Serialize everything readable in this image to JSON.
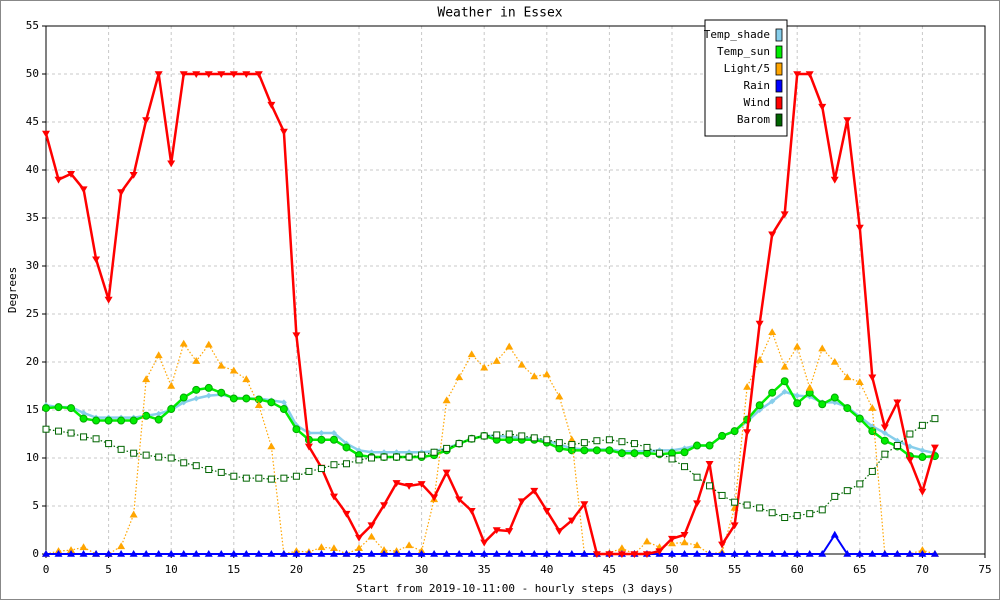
{
  "chart_data": {
    "type": "line",
    "title": "Weather in Essex",
    "x_label": "Start from 2019-10-11:00 - hourly steps (3 days)",
    "y_label": "Degrees",
    "x": [
      0,
      1,
      2,
      3,
      4,
      5,
      6,
      7,
      8,
      9,
      10,
      11,
      12,
      13,
      14,
      15,
      16,
      17,
      18,
      19,
      20,
      21,
      22,
      23,
      24,
      25,
      26,
      27,
      28,
      29,
      30,
      31,
      32,
      33,
      34,
      35,
      36,
      37,
      38,
      39,
      40,
      41,
      42,
      43,
      44,
      45,
      46,
      47,
      48,
      49,
      50,
      51,
      52,
      53,
      54,
      55,
      56,
      57,
      58,
      59,
      60,
      61,
      62,
      63,
      64,
      65,
      66,
      67,
      68,
      69,
      70,
      71
    ],
    "xlim": [
      0,
      75
    ],
    "xticks": [
      0,
      5,
      10,
      15,
      20,
      25,
      30,
      35,
      40,
      45,
      50,
      55,
      60,
      65,
      70,
      75
    ],
    "ylim": [
      0,
      55
    ],
    "yticks": [
      0,
      5,
      10,
      15,
      20,
      25,
      30,
      35,
      40,
      45,
      50,
      55
    ],
    "grid": true,
    "series": [
      {
        "name": "Temp_shade",
        "color": "#87ceeb",
        "marker": "diamond",
        "style": "solid",
        "values": [
          15.5,
          15.3,
          15.3,
          14.7,
          14.2,
          14.2,
          14.2,
          14.2,
          14.4,
          14.6,
          15,
          15.8,
          16.2,
          16.5,
          16.6,
          16.3,
          16.2,
          16.2,
          16,
          15.8,
          13.4,
          12.6,
          12.6,
          12.6,
          11.5,
          10.8,
          10.6,
          10.6,
          10.6,
          10.6,
          10.6,
          10.7,
          11,
          11.5,
          12,
          12.3,
          12.3,
          12.2,
          12.1,
          12,
          11.8,
          11.4,
          11,
          10.9,
          10.9,
          10.9,
          10.7,
          10.7,
          10.7,
          10.8,
          10.8,
          11,
          11.3,
          11.3,
          12.3,
          12.8,
          13.8,
          15,
          15.9,
          16.9,
          16.5,
          16.4,
          15.8,
          15.8,
          15.3,
          14.3,
          13.3,
          12.6,
          11.8,
          11.2,
          10.8,
          10.5
        ]
      },
      {
        "name": "Temp_sun",
        "color": "#00ee00",
        "marker": "circle",
        "style": "solid",
        "values": [
          15.2,
          15.3,
          15.2,
          14.1,
          13.9,
          13.9,
          13.9,
          13.9,
          14.4,
          14,
          15.1,
          16.3,
          17.1,
          17.3,
          16.8,
          16.2,
          16.2,
          16.1,
          15.8,
          15.1,
          13,
          11.9,
          11.9,
          11.9,
          11.1,
          10.3,
          10.1,
          10.1,
          10.1,
          10.1,
          10.1,
          10.3,
          10.8,
          11.5,
          12,
          12.3,
          11.9,
          11.9,
          11.9,
          11.9,
          11.6,
          11,
          10.8,
          10.8,
          10.8,
          10.8,
          10.5,
          10.5,
          10.5,
          10.4,
          10.5,
          10.6,
          11.3,
          11.3,
          12.3,
          12.8,
          14,
          15.5,
          16.8,
          18,
          15.7,
          16.8,
          15.6,
          16.3,
          15.2,
          14.1,
          12.8,
          11.8,
          11.2,
          10.2,
          10.1,
          10.2
        ]
      },
      {
        "name": "Light/5",
        "color": "#ffa500",
        "marker": "triangle-up",
        "style": "dotted",
        "values": [
          0,
          0.3,
          0.4,
          0.7,
          0,
          0,
          0.8,
          4.1,
          18.2,
          20.7,
          17.5,
          21.9,
          20.1,
          21.8,
          19.6,
          19.1,
          18.2,
          15.5,
          11.2,
          0,
          0.3,
          0.2,
          0.7,
          0.6,
          0,
          0.6,
          1.8,
          0.4,
          0.3,
          0.9,
          0.3,
          5.7,
          16,
          18.4,
          20.8,
          19.4,
          20.1,
          21.6,
          19.7,
          18.5,
          18.7,
          16.4,
          11.9,
          0,
          0,
          0.1,
          0.6,
          0,
          1.3,
          0.7,
          1.1,
          1.2,
          0.9,
          0,
          0.2,
          4.8,
          17.4,
          20.2,
          23.1,
          19.5,
          21.6,
          17.3,
          21.4,
          20,
          18.4,
          17.9,
          15.2,
          0,
          0,
          0,
          0.4,
          0
        ]
      },
      {
        "name": "Rain",
        "color": "#0000ff",
        "marker": "triangle-up",
        "style": "solid",
        "values": [
          0,
          0,
          0,
          0,
          0,
          0,
          0,
          0,
          0,
          0,
          0,
          0,
          0,
          0,
          0,
          0,
          0,
          0,
          0,
          0,
          0,
          0,
          0,
          0,
          0,
          0,
          0,
          0,
          0,
          0,
          0,
          0,
          0,
          0,
          0,
          0,
          0,
          0,
          0,
          0,
          0,
          0,
          0,
          0,
          0,
          0,
          0,
          0,
          0,
          0,
          0,
          0,
          0,
          0,
          0,
          0,
          0,
          0,
          0,
          0,
          0,
          0,
          0,
          2,
          0,
          0,
          0,
          0,
          0,
          0,
          0,
          0
        ]
      },
      {
        "name": "Wind",
        "color": "#ff0000",
        "marker": "triangle-down",
        "style": "solid",
        "values": [
          43.8,
          39,
          39.6,
          38,
          30.7,
          26.5,
          37.7,
          39.5,
          45.2,
          50,
          40.7,
          50,
          50,
          50,
          50,
          50,
          50,
          50,
          46.8,
          44,
          22.8,
          11.2,
          9,
          6,
          4.2,
          1.7,
          3,
          5.1,
          7.4,
          7.1,
          7.3,
          5.9,
          8.5,
          5.7,
          4.5,
          1.2,
          2.5,
          2.4,
          5.5,
          6.6,
          4.5,
          2.4,
          3.5,
          5.2,
          0,
          0,
          0,
          0,
          0,
          0.3,
          1.6,
          2,
          5.3,
          9.4,
          1,
          3,
          12.7,
          24,
          33.3,
          35.4,
          50,
          50,
          46.6,
          39,
          45.2,
          34,
          18.4,
          13.2,
          15.8,
          9.8,
          6.5,
          11.1
        ]
      },
      {
        "name": "Barom",
        "color": "#006400",
        "marker": "square",
        "style": "dotted",
        "values": [
          13,
          12.8,
          12.6,
          12.2,
          12,
          11.5,
          10.9,
          10.5,
          10.3,
          10.1,
          10,
          9.5,
          9.2,
          8.8,
          8.5,
          8.1,
          7.9,
          7.9,
          7.8,
          7.9,
          8.1,
          8.6,
          8.9,
          9.3,
          9.4,
          9.8,
          10,
          10.1,
          10.1,
          10.1,
          10.3,
          10.6,
          11,
          11.5,
          12,
          12.3,
          12.4,
          12.5,
          12.3,
          12.1,
          11.9,
          11.6,
          11.4,
          11.6,
          11.8,
          11.9,
          11.7,
          11.5,
          11.1,
          10.5,
          9.9,
          9.1,
          8,
          7.1,
          6.1,
          5.4,
          5.1,
          4.8,
          4.3,
          3.8,
          4,
          4.2,
          4.6,
          6,
          6.6,
          7.3,
          8.6,
          10.4,
          11.3,
          12.5,
          13.4,
          14.1
        ]
      }
    ]
  }
}
